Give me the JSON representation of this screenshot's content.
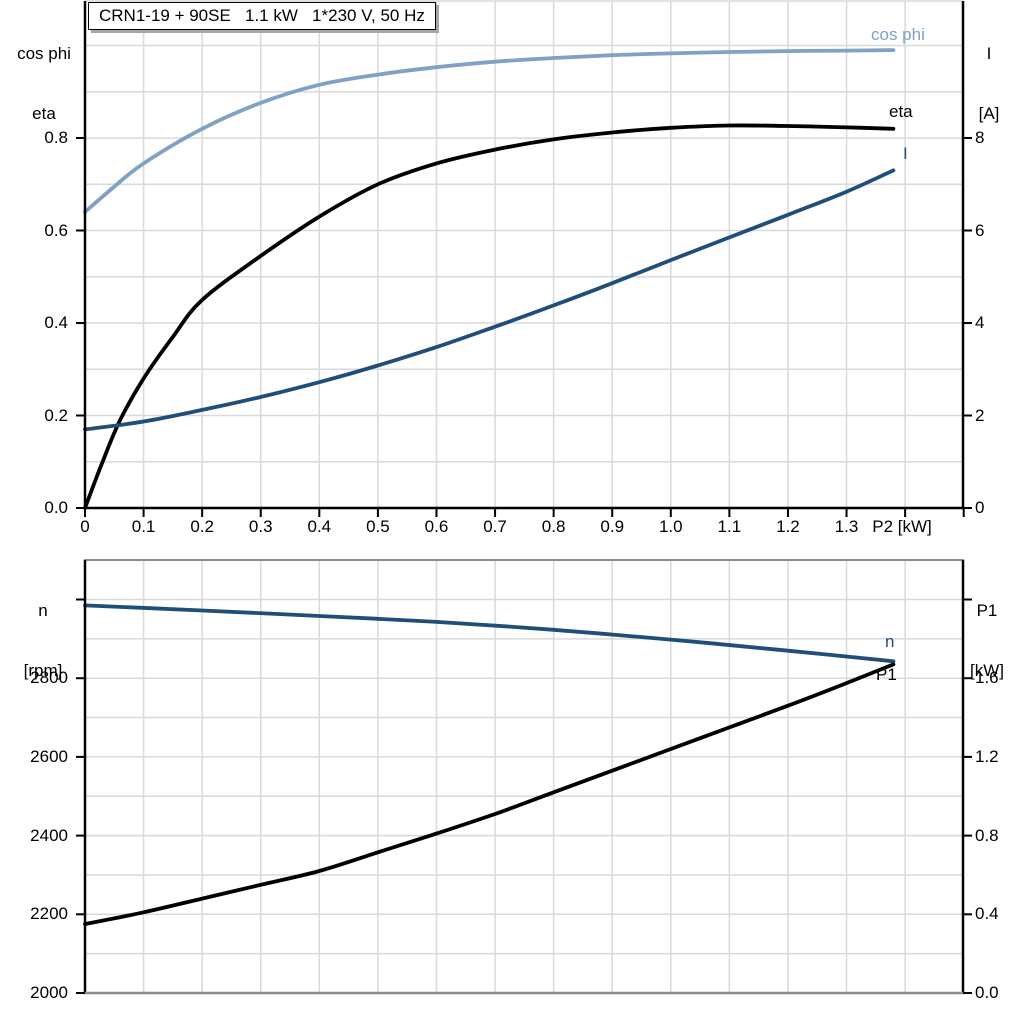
{
  "title": "CRN1-19 + 90SE   1.1 kW   1*230 V, 50 Hz",
  "colors": {
    "dark_blue": "#1F4E79",
    "light_blue": "#7EA1C5",
    "black": "#000000",
    "grid": "#D9D9D9",
    "boundary": "#8C8C8C",
    "axis": "#000000"
  },
  "corner_labels": {
    "top_left": [
      "cos phi",
      "eta"
    ],
    "top_right": [
      "I",
      "[A]"
    ],
    "bottom_left": [
      "n",
      "[rpm]"
    ],
    "bottom_right": [
      "P1",
      "[kW]"
    ]
  },
  "chart_data": [
    {
      "type": "line",
      "title": "CRN1-19 + 90SE   1.1 kW   1*230 V, 50 Hz",
      "xlabel": "P2 [kW]",
      "ylabel_left": "cos phi / eta",
      "ylabel_right": "I [A]",
      "xlim": [
        0,
        1.5
      ],
      "ylim_left": [
        0,
        1.1
      ],
      "ylim_right": [
        0,
        11
      ],
      "grid": true,
      "legend_position": "end-of-curve labels",
      "x_ticks": {
        "values": [
          0,
          0.1,
          0.2,
          0.3,
          0.4,
          0.5,
          0.6,
          0.7,
          0.8,
          0.9,
          1.0,
          1.1,
          1.2,
          1.3,
          1.4,
          1.5
        ],
        "labels": [
          "0",
          "0.1",
          "0.2",
          "0.3",
          "0.4",
          "0.5",
          "0.6",
          "0.7",
          "0.8",
          "0.9",
          "1.0",
          "1.1",
          "1.2",
          "1.3",
          "",
          ""
        ]
      },
      "left_ticks": {
        "values": [
          0,
          0.2,
          0.4,
          0.6,
          0.8
        ],
        "labels": [
          "0.0",
          "0.2",
          "0.4",
          "0.6",
          "0.8"
        ]
      },
      "right_ticks": {
        "values": [
          0,
          2,
          4,
          6,
          8
        ],
        "labels": [
          "0",
          "2",
          "4",
          "6",
          "8"
        ]
      },
      "x_grid": [
        0.1,
        0.2,
        0.3,
        0.4,
        0.5,
        0.6,
        0.7,
        0.8,
        0.9,
        1.0,
        1.1,
        1.2,
        1.3,
        1.4
      ],
      "y_grid_left": [
        0.1,
        0.2,
        0.3,
        0.4,
        0.5,
        0.6,
        0.7,
        0.8,
        0.9,
        1.0
      ],
      "series": [
        {
          "name": "cos phi",
          "axis": "left",
          "color": "#7EA1C5",
          "x": [
            0,
            0.05,
            0.1,
            0.2,
            0.3,
            0.4,
            0.5,
            0.6,
            0.7,
            0.8,
            0.9,
            1.0,
            1.1,
            1.2,
            1.3,
            1.38
          ],
          "y": [
            0.64,
            0.695,
            0.745,
            0.82,
            0.876,
            0.915,
            0.937,
            0.953,
            0.965,
            0.973,
            0.979,
            0.983,
            0.986,
            0.988,
            0.989,
            0.99
          ]
        },
        {
          "name": "eta",
          "axis": "left",
          "color": "#000000",
          "x": [
            0,
            0.03,
            0.06,
            0.1,
            0.15,
            0.2,
            0.3,
            0.4,
            0.5,
            0.6,
            0.7,
            0.8,
            0.9,
            1.0,
            1.1,
            1.2,
            1.3,
            1.38
          ],
          "y": [
            0,
            0.1,
            0.19,
            0.28,
            0.37,
            0.45,
            0.545,
            0.63,
            0.7,
            0.745,
            0.775,
            0.797,
            0.812,
            0.822,
            0.827,
            0.826,
            0.823,
            0.82
          ]
        },
        {
          "name": "I",
          "axis": "right",
          "color": "#1F4E79",
          "x": [
            0,
            0.1,
            0.2,
            0.3,
            0.4,
            0.5,
            0.6,
            0.7,
            0.8,
            0.9,
            1.0,
            1.1,
            1.2,
            1.3,
            1.38
          ],
          "y": [
            1.7,
            1.87,
            2.12,
            2.4,
            2.72,
            3.08,
            3.48,
            3.92,
            4.38,
            4.86,
            5.36,
            5.85,
            6.34,
            6.84,
            7.3
          ]
        }
      ]
    },
    {
      "type": "line",
      "xlabel": "P2 [kW]",
      "ylabel_left": "n [rpm]",
      "ylabel_right": "P1 [kW]",
      "xlim": [
        0,
        1.5
      ],
      "ylim_left": [
        2000,
        3100
      ],
      "ylim_right": [
        0,
        2.2
      ],
      "grid": true,
      "x_ticks": {
        "values": [],
        "labels": []
      },
      "left_ticks": {
        "values": [
          2000,
          2200,
          2400,
          2600,
          2800,
          3000
        ],
        "labels": [
          "2000",
          "2200",
          "2400",
          "2600",
          "2800",
          ""
        ]
      },
      "right_ticks": {
        "values": [
          0,
          0.4,
          0.8,
          1.2,
          1.6,
          2.0
        ],
        "labels": [
          "0.0",
          "0.4",
          "0.8",
          "1.2",
          "1.6",
          ""
        ]
      },
      "x_grid": [
        0.1,
        0.2,
        0.3,
        0.4,
        0.5,
        0.6,
        0.7,
        0.8,
        0.9,
        1.0,
        1.1,
        1.2,
        1.3,
        1.4
      ],
      "y_grid_left": [
        2100,
        2200,
        2300,
        2400,
        2500,
        2600,
        2700,
        2800,
        2900,
        3000
      ],
      "series": [
        {
          "name": "n",
          "axis": "left",
          "color": "#1F4E79",
          "x": [
            0,
            0.2,
            0.4,
            0.6,
            0.8,
            1.0,
            1.2,
            1.38
          ],
          "y": [
            2985,
            2972,
            2958,
            2943,
            2923,
            2898,
            2870,
            2843
          ]
        },
        {
          "name": "P1",
          "axis": "right",
          "color": "#000000",
          "x": [
            0,
            0.1,
            0.2,
            0.3,
            0.4,
            0.5,
            0.6,
            0.7,
            0.8,
            0.9,
            1.0,
            1.1,
            1.2,
            1.3,
            1.38
          ],
          "y": [
            0.35,
            0.41,
            0.48,
            0.55,
            0.62,
            0.715,
            0.81,
            0.91,
            1.02,
            1.13,
            1.24,
            1.35,
            1.46,
            1.575,
            1.67
          ]
        }
      ]
    }
  ]
}
